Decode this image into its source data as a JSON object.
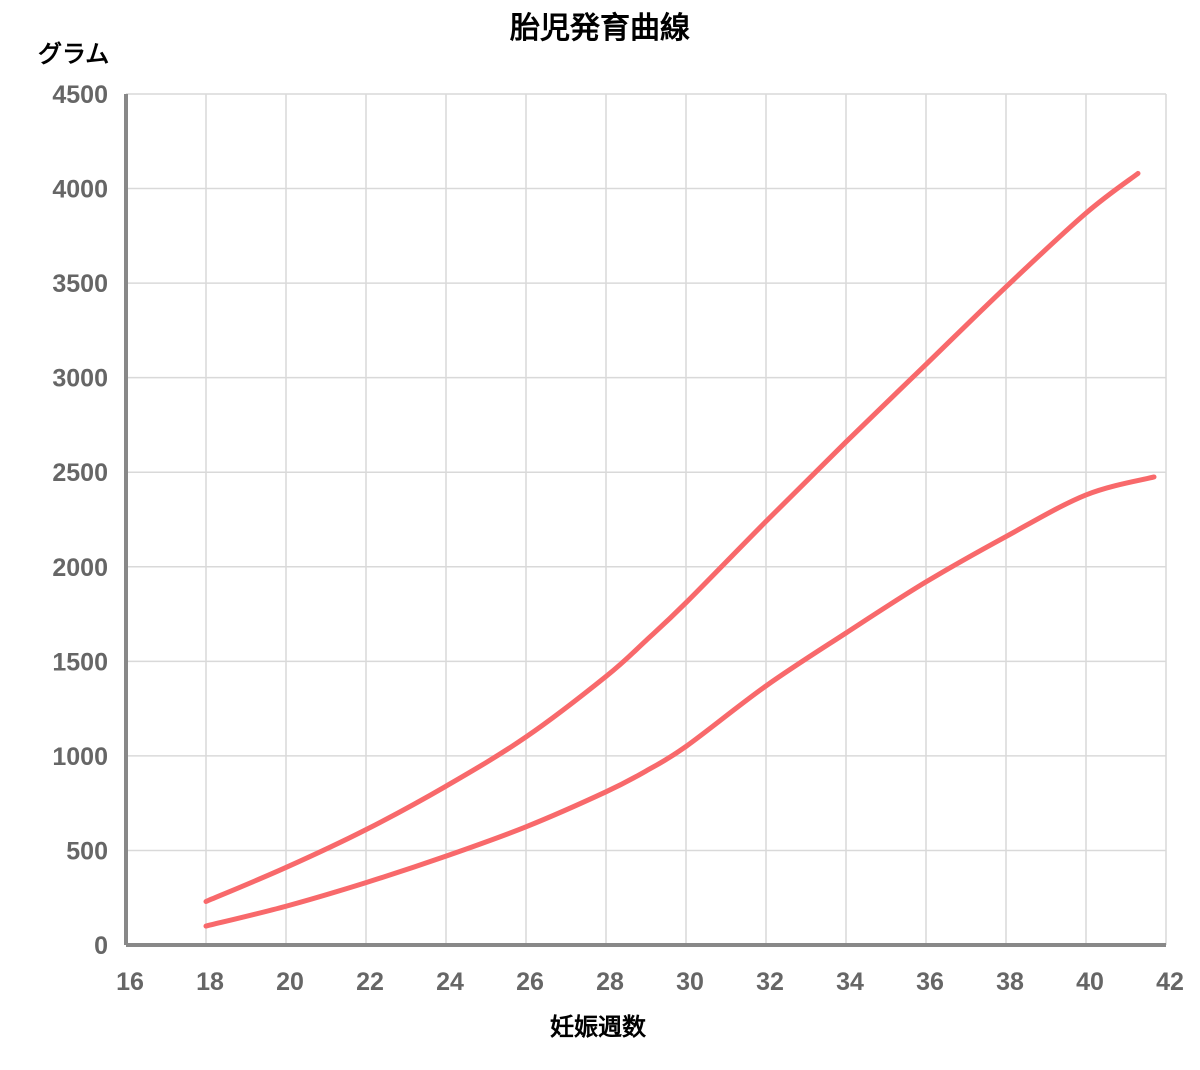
{
  "chart_data": {
    "type": "line",
    "title": "胎児発育曲線",
    "xlabel": "妊娠週数",
    "ylabel": "グラム",
    "xlim": [
      16,
      42
    ],
    "ylim": [
      0,
      4500
    ],
    "x_ticks": [
      "16",
      "18",
      "20",
      "22",
      "24",
      "26",
      "28",
      "30",
      "32",
      "34",
      "36",
      "38",
      "40",
      "42"
    ],
    "y_ticks": [
      "0",
      "500",
      "1000",
      "1500",
      "2000",
      "2500",
      "3000",
      "3500",
      "4000",
      "4500"
    ],
    "grid": true,
    "legend": "none",
    "colors": {
      "line": "#f8696b",
      "grid": "#d9d9d9",
      "axis": "#888888",
      "tick_text": "#666666"
    },
    "series": [
      {
        "x": [
          18,
          20,
          22,
          24,
          26,
          28,
          29,
          30,
          32,
          34,
          36,
          38,
          40,
          41.3
        ],
        "values": [
          230,
          410,
          610,
          840,
          1100,
          1420,
          1610,
          1810,
          2240,
          2660,
          3070,
          3480,
          3870,
          4080
        ]
      },
      {
        "x": [
          18,
          20,
          22,
          24,
          26,
          28,
          29,
          30,
          32,
          34,
          36,
          38,
          40,
          41.7
        ],
        "values": [
          100,
          205,
          330,
          470,
          625,
          810,
          920,
          1050,
          1370,
          1650,
          1920,
          2160,
          2380,
          2475
        ]
      }
    ]
  }
}
